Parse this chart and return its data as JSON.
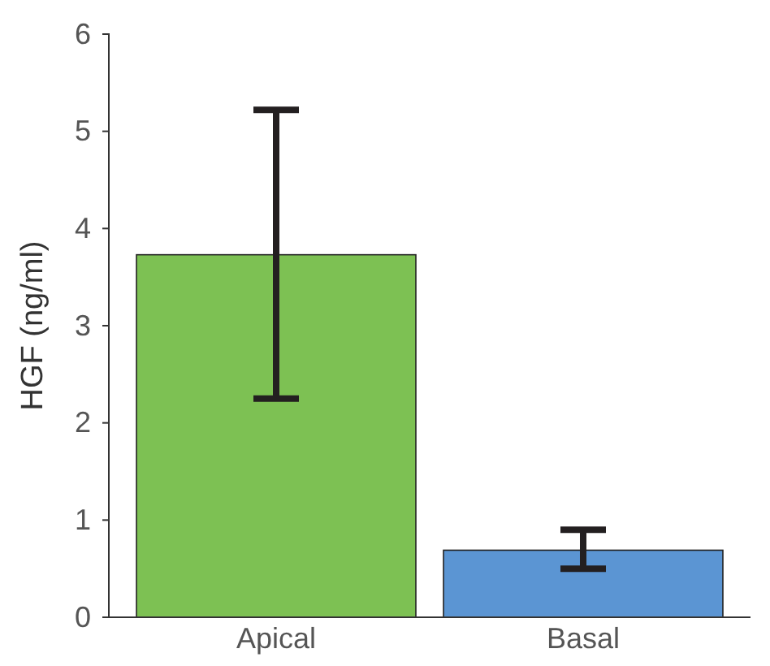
{
  "chart_data": {
    "type": "bar",
    "ylabel": "HGF (ng/ml)",
    "categories": [
      "Apical",
      "Basal"
    ],
    "values": [
      3.73,
      0.69
    ],
    "colors": [
      "#7dc153",
      "#5b95d3"
    ],
    "errors": [
      [
        2.25,
        5.22
      ],
      [
        0.5,
        0.9
      ]
    ],
    "ylim": [
      0,
      6
    ],
    "yticks": [
      0,
      1,
      2,
      3,
      4,
      5,
      6
    ],
    "grid": false
  }
}
